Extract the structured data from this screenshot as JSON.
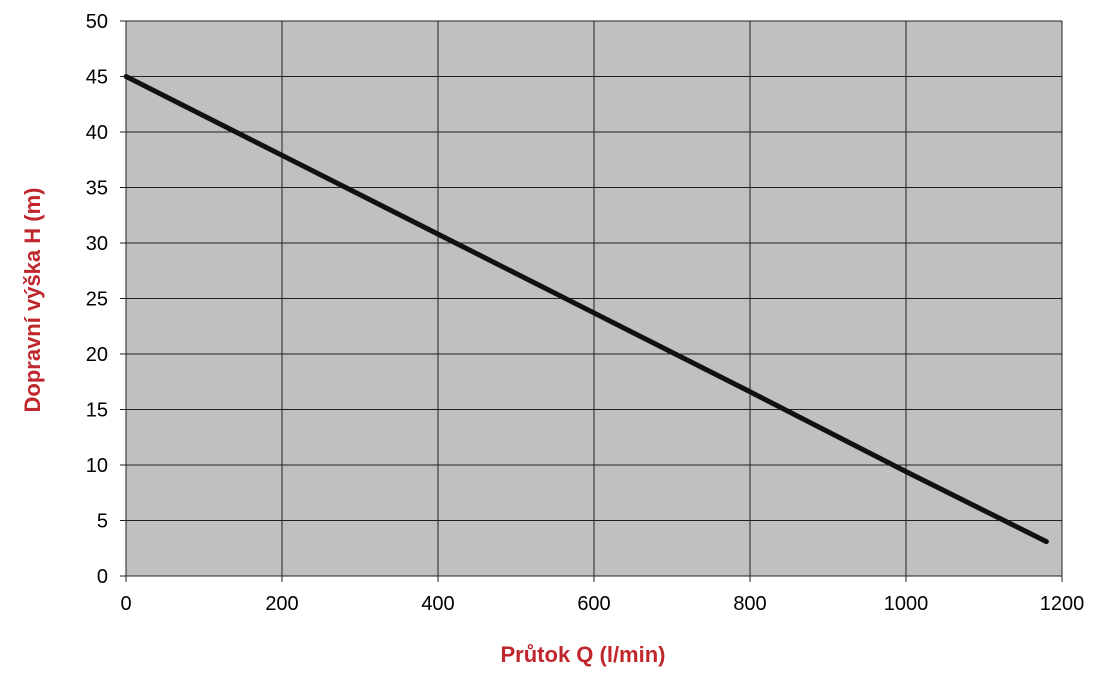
{
  "chart_data": {
    "type": "line",
    "title": "",
    "xlabel": "Průtok Q (l/min)",
    "ylabel": "Dopravní výška H (m)",
    "xlim": [
      0,
      1200
    ],
    "ylim": [
      0,
      50
    ],
    "x_ticks": [
      0,
      200,
      400,
      600,
      800,
      1000,
      1200
    ],
    "y_ticks": [
      0,
      5,
      10,
      15,
      20,
      25,
      30,
      35,
      40,
      45,
      50
    ],
    "grid": true,
    "legend": "none",
    "series": [
      {
        "x": [
          0,
          200,
          400,
          600,
          800,
          1000,
          1180
        ],
        "y": [
          45,
          37.9,
          30.8,
          23.7,
          16.6,
          9.4,
          3.1
        ]
      }
    ]
  },
  "colors": {
    "plot_background": "#c0c0c0",
    "grid": "#222222",
    "line": "#111111",
    "axis_title": "#c0272d"
  }
}
